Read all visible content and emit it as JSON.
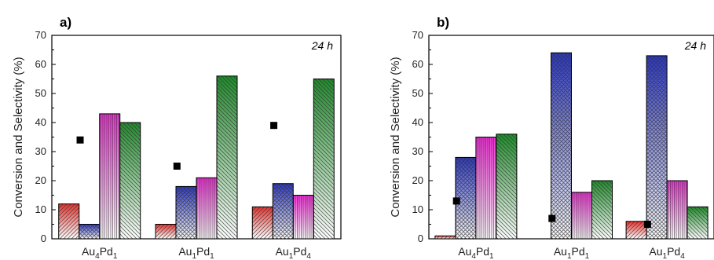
{
  "chart_data": [
    {
      "panel": "a)",
      "type": "bar",
      "annotation": "24 h",
      "ylabel": "Conversion and Selectivity (%)",
      "ylim": [
        0,
        70
      ],
      "yticks": [
        "0",
        "10",
        "20",
        "30",
        "40",
        "50",
        "60",
        "70"
      ],
      "categories": [
        {
          "base": "Au",
          "sub1": "4",
          "mid": "Pd",
          "sub2": "1"
        },
        {
          "base": "Au",
          "sub1": "1",
          "mid": "Pd",
          "sub2": "1"
        },
        {
          "base": "Au",
          "sub1": "1",
          "mid": "Pd",
          "sub2": "4"
        }
      ],
      "series": [
        {
          "color": "#e8302c",
          "values": [
            12,
            5,
            11
          ]
        },
        {
          "color": "#2a36c8",
          "values": [
            5,
            18,
            19
          ]
        },
        {
          "color": "#ee2fd4",
          "values": [
            43,
            21,
            15
          ]
        },
        {
          "color": "#1f8a2a",
          "values": [
            40,
            56,
            55
          ]
        }
      ],
      "markers": [
        34,
        25,
        39
      ]
    },
    {
      "panel": "b)",
      "type": "bar",
      "annotation": "24 h",
      "ylabel": "Conversion and Selectivity (%)",
      "ylim": [
        0,
        70
      ],
      "yticks": [
        "0",
        "10",
        "20",
        "30",
        "40",
        "50",
        "60",
        "70"
      ],
      "categories": [
        {
          "base": "Au",
          "sub1": "4",
          "mid": "Pd",
          "sub2": "1"
        },
        {
          "base": "Au",
          "sub1": "1",
          "mid": "Pd",
          "sub2": "1"
        },
        {
          "base": "Au",
          "sub1": "1",
          "mid": "Pd",
          "sub2": "4"
        }
      ],
      "series": [
        {
          "color": "#e8302c",
          "values": [
            1,
            0,
            6
          ]
        },
        {
          "color": "#2a36c8",
          "values": [
            28,
            64,
            63
          ]
        },
        {
          "color": "#ee2fd4",
          "values": [
            35,
            16,
            20
          ]
        },
        {
          "color": "#1f8a2a",
          "values": [
            36,
            20,
            11
          ]
        }
      ],
      "markers": [
        13,
        7,
        5
      ]
    }
  ]
}
